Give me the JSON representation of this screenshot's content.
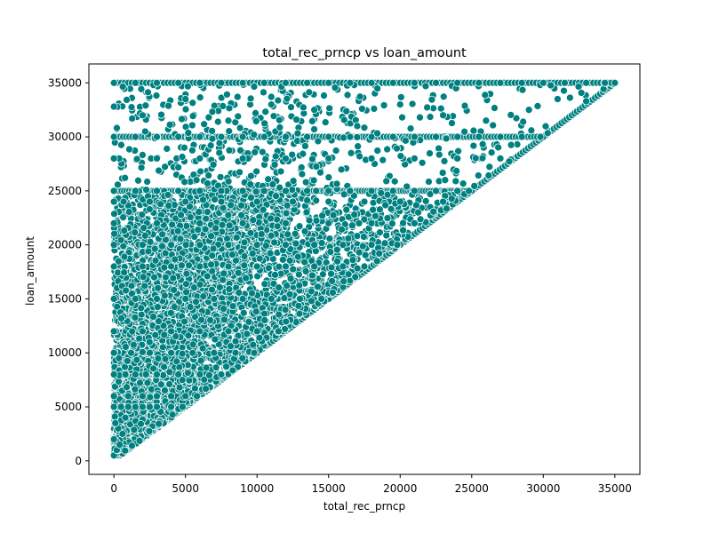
{
  "chart_data": {
    "type": "scatter",
    "title": "total_rec_prncp vs loan_amount",
    "xlabel": "total_rec_prncp",
    "ylabel": "loan_amount",
    "xlim": [
      -1750,
      36750
    ],
    "ylim": [
      -1250,
      36750
    ],
    "xticks": [
      0,
      5000,
      10000,
      15000,
      20000,
      25000,
      30000,
      35000
    ],
    "yticks": [
      0,
      5000,
      10000,
      15000,
      20000,
      25000,
      30000,
      35000
    ],
    "grid": false,
    "legend": "none",
    "marker_color": "#008080",
    "marker_edge_color": "#ffffff",
    "density_note_points_sampled": true,
    "point_rules": {
      "diagonal_min_x": 500,
      "diagonal_max_x": 35000,
      "horizontal_bands_y": [
        35000,
        30000,
        25000,
        20000,
        15000,
        12000,
        10000,
        8000,
        6000,
        5000
      ],
      "max_loan": 35000
    },
    "points": [
      [
        0,
        500
      ],
      [
        200,
        1000
      ],
      [
        400,
        1500
      ],
      [
        0,
        2000
      ],
      [
        600,
        2500
      ],
      [
        300,
        3000
      ],
      [
        100,
        3500
      ],
      [
        800,
        4000
      ],
      [
        0,
        5000
      ],
      [
        500,
        5000
      ],
      [
        1000,
        5000
      ],
      [
        1500,
        5000
      ],
      [
        2000,
        5000
      ],
      [
        2500,
        5000
      ],
      [
        3000,
        5000
      ],
      [
        4000,
        5000
      ],
      [
        4800,
        5000
      ],
      [
        0,
        6000
      ],
      [
        1000,
        6000
      ],
      [
        2000,
        6000
      ],
      [
        3000,
        6000
      ],
      [
        4000,
        6000
      ],
      [
        5000,
        6000
      ],
      [
        5800,
        6000
      ],
      [
        0,
        8000
      ],
      [
        1500,
        8000
      ],
      [
        3000,
        8000
      ],
      [
        4500,
        8000
      ],
      [
        6000,
        8000
      ],
      [
        7500,
        8000
      ],
      [
        0,
        10000
      ],
      [
        1200,
        10000
      ],
      [
        2500,
        10000
      ],
      [
        4000,
        10000
      ],
      [
        5500,
        10000
      ],
      [
        7000,
        10000
      ],
      [
        8500,
        10000
      ],
      [
        9800,
        10000
      ],
      [
        0,
        12000
      ],
      [
        2000,
        12000
      ],
      [
        4000,
        12000
      ],
      [
        6000,
        12000
      ],
      [
        8000,
        12000
      ],
      [
        10000,
        12000
      ],
      [
        11500,
        12000
      ],
      [
        0,
        15000
      ],
      [
        1500,
        15000
      ],
      [
        3000,
        15000
      ],
      [
        5000,
        15000
      ],
      [
        7000,
        15000
      ],
      [
        9000,
        15000
      ],
      [
        11000,
        15000
      ],
      [
        13000,
        15000
      ],
      [
        14500,
        15000
      ],
      [
        0,
        18000
      ],
      [
        2000,
        18000
      ],
      [
        4000,
        18000
      ],
      [
        6000,
        18000
      ],
      [
        8000,
        18000
      ],
      [
        10000,
        18000
      ],
      [
        12000,
        18000
      ],
      [
        14000,
        18000
      ],
      [
        16000,
        18000
      ],
      [
        17500,
        18000
      ],
      [
        0,
        20000
      ],
      [
        2000,
        20000
      ],
      [
        4000,
        20000
      ],
      [
        6000,
        20000
      ],
      [
        8000,
        20000
      ],
      [
        10000,
        20000
      ],
      [
        12000,
        20000
      ],
      [
        14000,
        20000
      ],
      [
        16000,
        20000
      ],
      [
        18000,
        20000
      ],
      [
        19800,
        20000
      ],
      [
        0,
        22000
      ],
      [
        3000,
        22000
      ],
      [
        6000,
        22000
      ],
      [
        9000,
        22000
      ],
      [
        12000,
        22000
      ],
      [
        15000,
        22000
      ],
      [
        18000,
        22000
      ],
      [
        21000,
        22000
      ],
      [
        0,
        24000
      ],
      [
        2500,
        24000
      ],
      [
        5000,
        24000
      ],
      [
        7500,
        24000
      ],
      [
        10000,
        24000
      ],
      [
        12500,
        24000
      ],
      [
        15000,
        24000
      ],
      [
        17500,
        24000
      ],
      [
        20000,
        24000
      ],
      [
        23000,
        24000
      ],
      [
        0,
        25000
      ],
      [
        1500,
        25000
      ],
      [
        3000,
        25000
      ],
      [
        4500,
        25000
      ],
      [
        6000,
        25000
      ],
      [
        7500,
        25000
      ],
      [
        9000,
        25000
      ],
      [
        10500,
        25000
      ],
      [
        12000,
        25000
      ],
      [
        13500,
        25000
      ],
      [
        15000,
        25000
      ],
      [
        16500,
        25000
      ],
      [
        18000,
        25000
      ],
      [
        19500,
        25000
      ],
      [
        21000,
        25000
      ],
      [
        22500,
        25000
      ],
      [
        24000,
        25000
      ],
      [
        24800,
        25000
      ],
      [
        0,
        28000
      ],
      [
        3000,
        28000
      ],
      [
        6000,
        28000
      ],
      [
        9000,
        28000
      ],
      [
        12000,
        28000
      ],
      [
        15000,
        28000
      ],
      [
        18000,
        28000
      ],
      [
        21000,
        28000
      ],
      [
        24000,
        28000
      ],
      [
        27000,
        28000
      ],
      [
        0,
        30000
      ],
      [
        1500,
        30000
      ],
      [
        3000,
        30000
      ],
      [
        4500,
        30000
      ],
      [
        6000,
        30000
      ],
      [
        7500,
        30000
      ],
      [
        9000,
        30000
      ],
      [
        10500,
        30000
      ],
      [
        12000,
        30000
      ],
      [
        13500,
        30000
      ],
      [
        15000,
        30000
      ],
      [
        16500,
        30000
      ],
      [
        18000,
        30000
      ],
      [
        19500,
        30000
      ],
      [
        21000,
        30000
      ],
      [
        22500,
        30000
      ],
      [
        24000,
        30000
      ],
      [
        25500,
        30000
      ],
      [
        27000,
        30000
      ],
      [
        28500,
        30000
      ],
      [
        29800,
        30000
      ],
      [
        0,
        32800
      ],
      [
        2000,
        32000
      ],
      [
        5000,
        33500
      ],
      [
        8000,
        31500
      ],
      [
        11000,
        33000
      ],
      [
        14000,
        32500
      ],
      [
        17000,
        31000
      ],
      [
        20000,
        33000
      ],
      [
        23000,
        32000
      ],
      [
        26000,
        31500
      ],
      [
        29000,
        32500
      ],
      [
        31000,
        33500
      ],
      [
        33000,
        33300
      ],
      [
        0,
        35000
      ],
      [
        1500,
        35000
      ],
      [
        3000,
        35000
      ],
      [
        4500,
        35000
      ],
      [
        6000,
        35000
      ],
      [
        7500,
        35000
      ],
      [
        9000,
        35000
      ],
      [
        10500,
        35000
      ],
      [
        12000,
        35000
      ],
      [
        13500,
        35000
      ],
      [
        15000,
        35000
      ],
      [
        16500,
        35000
      ],
      [
        18000,
        35000
      ],
      [
        19500,
        35000
      ],
      [
        21000,
        35000
      ],
      [
        22500,
        35000
      ],
      [
        24000,
        35000
      ],
      [
        25500,
        35000
      ],
      [
        27000,
        35000
      ],
      [
        28500,
        35000
      ],
      [
        30000,
        35000
      ],
      [
        31500,
        35000
      ],
      [
        33000,
        35000
      ],
      [
        34300,
        35000
      ],
      [
        35000,
        35000
      ]
    ]
  }
}
